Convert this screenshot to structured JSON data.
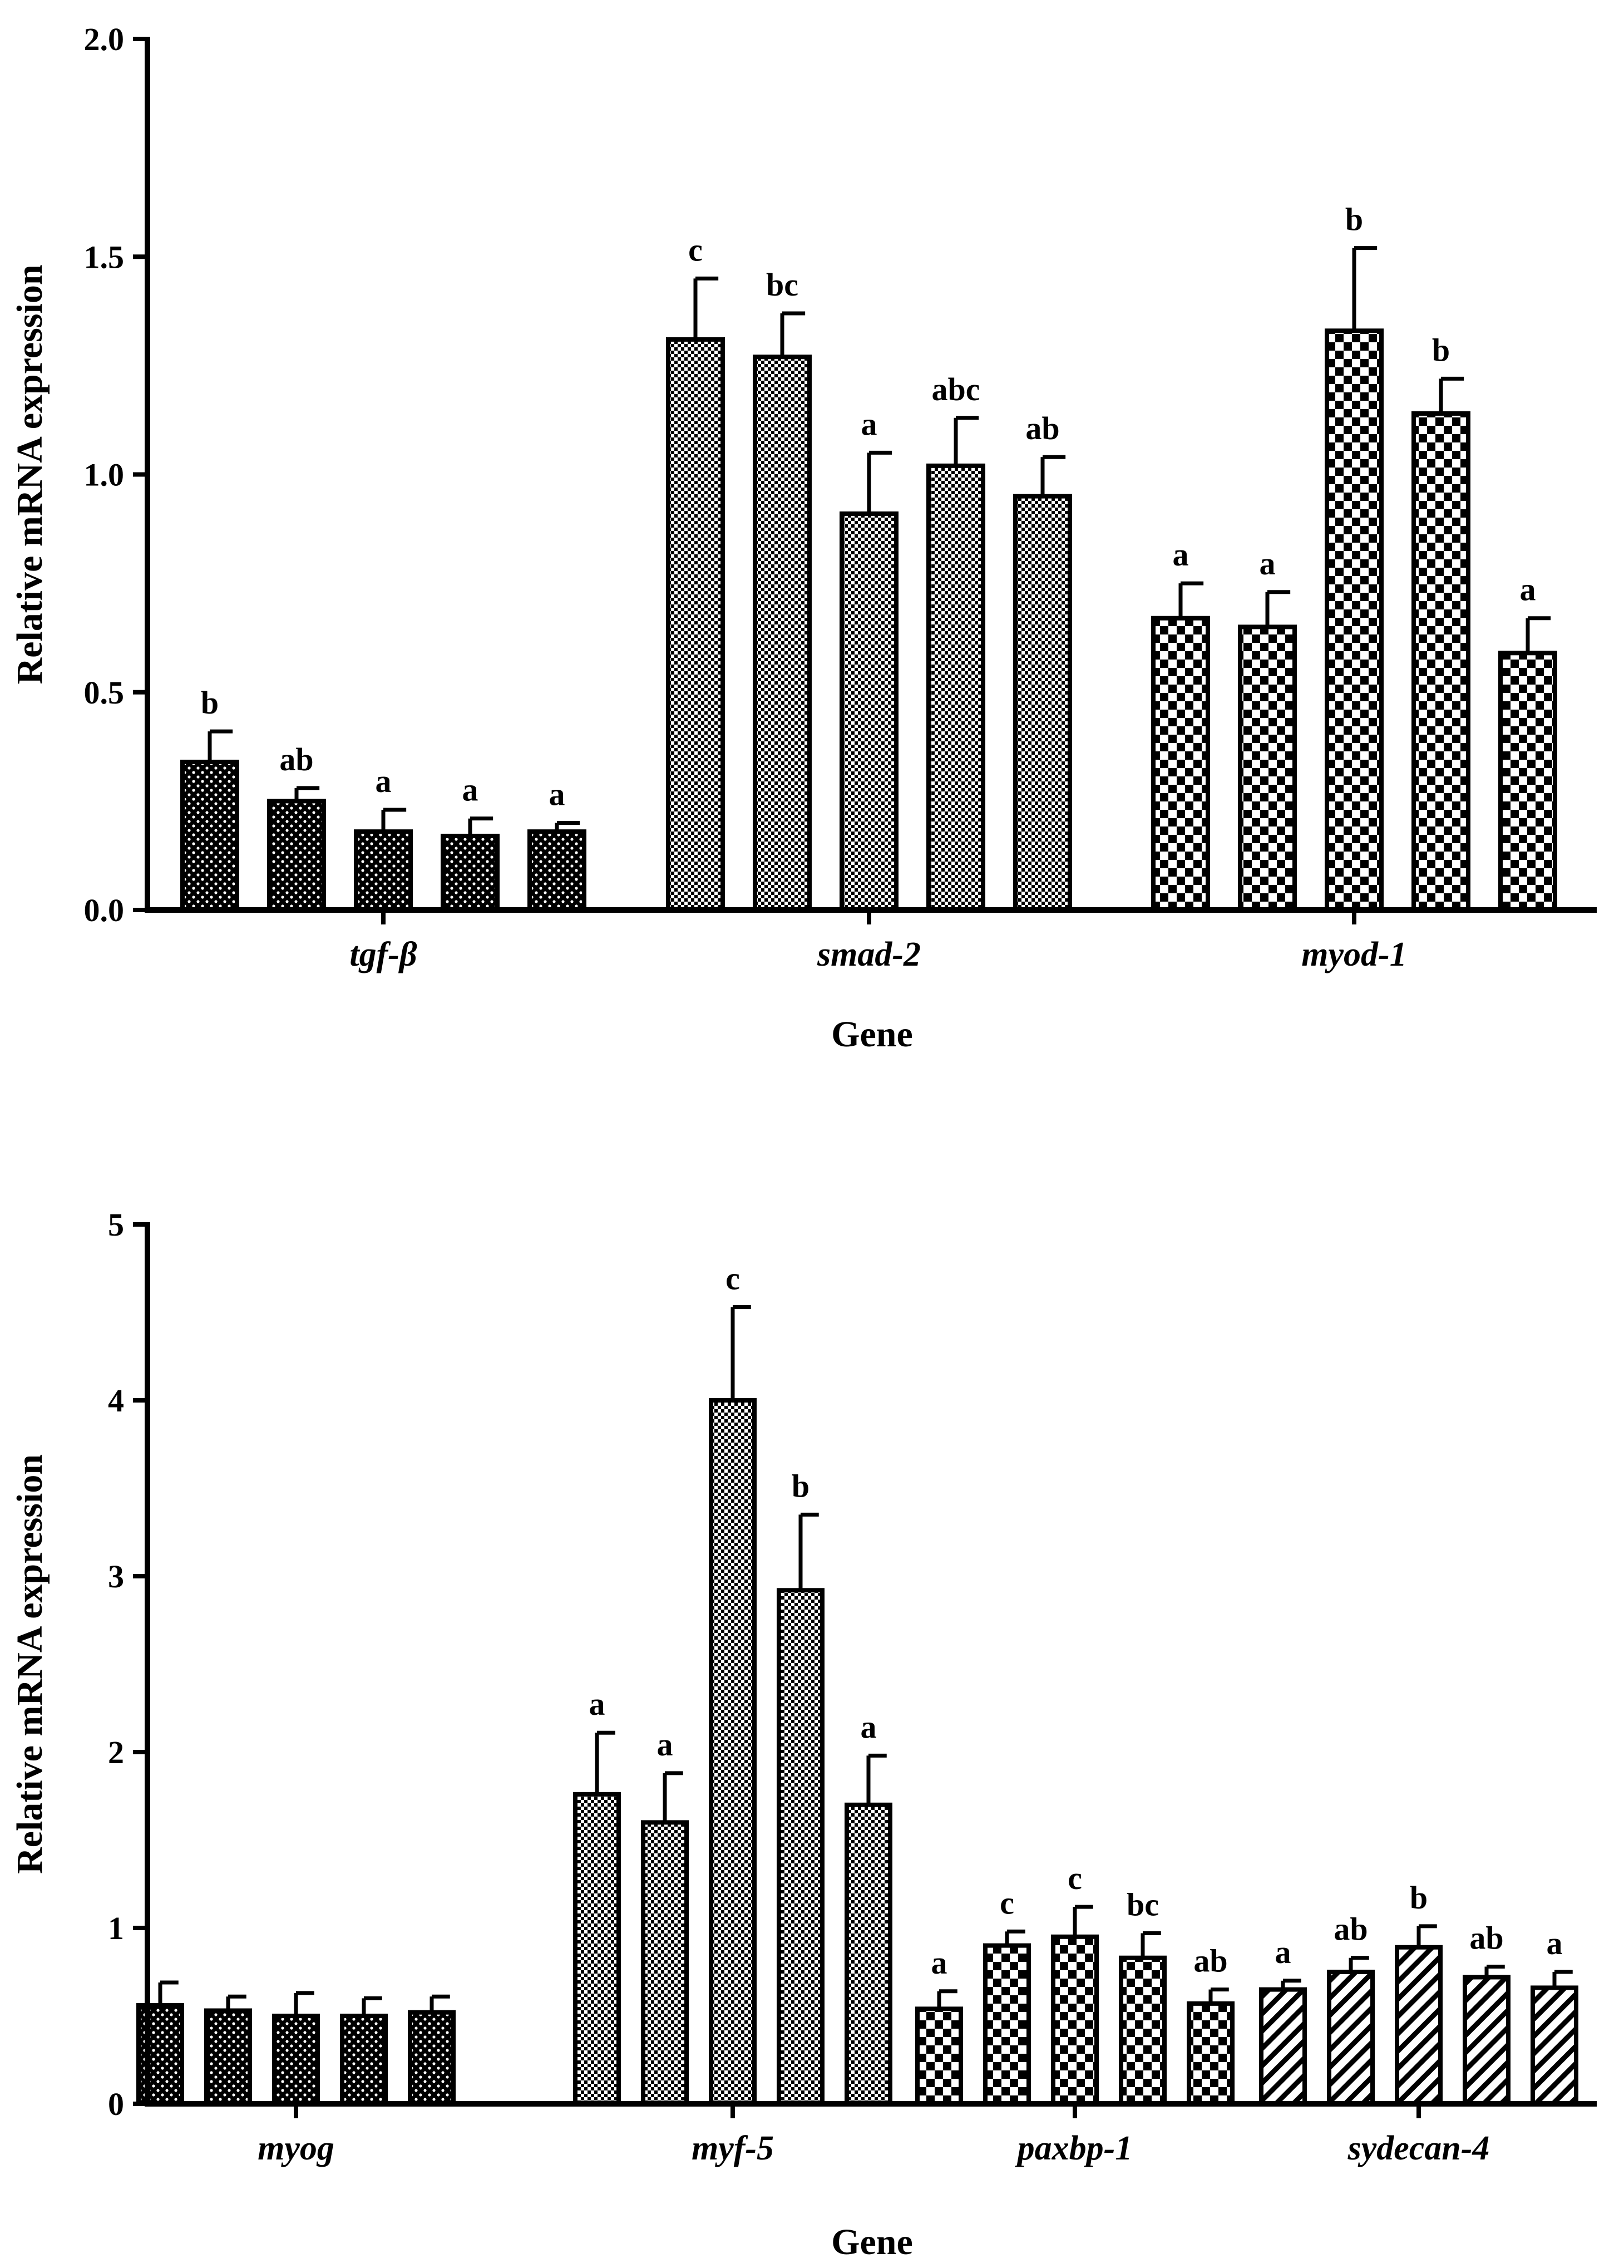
{
  "chart_data": [
    {
      "type": "bar",
      "xlabel": "Gene",
      "ylabel": "Relative mRNA expression",
      "ylim": [
        0,
        2.0
      ],
      "yticks": [
        "0.0",
        "0.5",
        "1.0",
        "1.5",
        "2.0"
      ],
      "ytick_values": [
        0,
        0.5,
        1.0,
        1.5,
        2.0
      ],
      "groups": [
        {
          "name": "tgf-β",
          "pattern": "dots",
          "values": [
            0.34,
            0.25,
            0.18,
            0.17,
            0.18
          ],
          "errors": [
            0.07,
            0.03,
            0.05,
            0.04,
            0.02
          ],
          "labels": [
            "b",
            "ab",
            "a",
            "a",
            "a"
          ]
        },
        {
          "name": "smad-2",
          "pattern": "fine-check",
          "values": [
            1.31,
            1.27,
            0.91,
            1.02,
            0.95
          ],
          "errors": [
            0.14,
            0.1,
            0.14,
            0.11,
            0.09
          ],
          "labels": [
            "c",
            "bc",
            "a",
            "abc",
            "ab"
          ]
        },
        {
          "name": "myod-1",
          "pattern": "coarse-check",
          "values": [
            0.67,
            0.65,
            1.33,
            1.14,
            0.59
          ],
          "errors": [
            0.08,
            0.08,
            0.19,
            0.08,
            0.08
          ],
          "labels": [
            "a",
            "a",
            "b",
            "b",
            "a"
          ]
        }
      ]
    },
    {
      "type": "bar",
      "xlabel": "Gene",
      "ylabel": "Relative mRNA expression",
      "ylim": [
        0,
        5
      ],
      "yticks": [
        "0",
        "1",
        "2",
        "3",
        "4",
        "5"
      ],
      "ytick_values": [
        0,
        1,
        2,
        3,
        4,
        5
      ],
      "groups": [
        {
          "name": "myog",
          "pattern": "dots",
          "values": [
            0.56,
            0.53,
            0.5,
            0.5,
            0.52
          ],
          "errors": [
            0.13,
            0.08,
            0.13,
            0.1,
            0.09
          ],
          "labels": [
            "",
            "",
            "",
            "",
            ""
          ]
        },
        {
          "name": "myf-5",
          "pattern": "fine-check",
          "values": [
            1.76,
            1.6,
            4.0,
            2.92,
            1.7
          ],
          "errors": [
            0.35,
            0.28,
            0.53,
            0.43,
            0.28
          ],
          "labels": [
            "a",
            "a",
            "c",
            "b",
            "a"
          ]
        },
        {
          "name": "paxbp-1",
          "pattern": "coarse-check",
          "values": [
            0.54,
            0.9,
            0.95,
            0.83,
            0.57
          ],
          "errors": [
            0.1,
            0.08,
            0.17,
            0.14,
            0.08
          ],
          "labels": [
            "a",
            "c",
            "c",
            "bc",
            "ab"
          ]
        },
        {
          "name": "sydecan-4",
          "pattern": "diagonal",
          "values": [
            0.65,
            0.75,
            0.89,
            0.72,
            0.66
          ],
          "errors": [
            0.05,
            0.08,
            0.12,
            0.06,
            0.09
          ],
          "labels": [
            "a",
            "ab",
            "b",
            "ab",
            "a"
          ]
        }
      ]
    }
  ]
}
